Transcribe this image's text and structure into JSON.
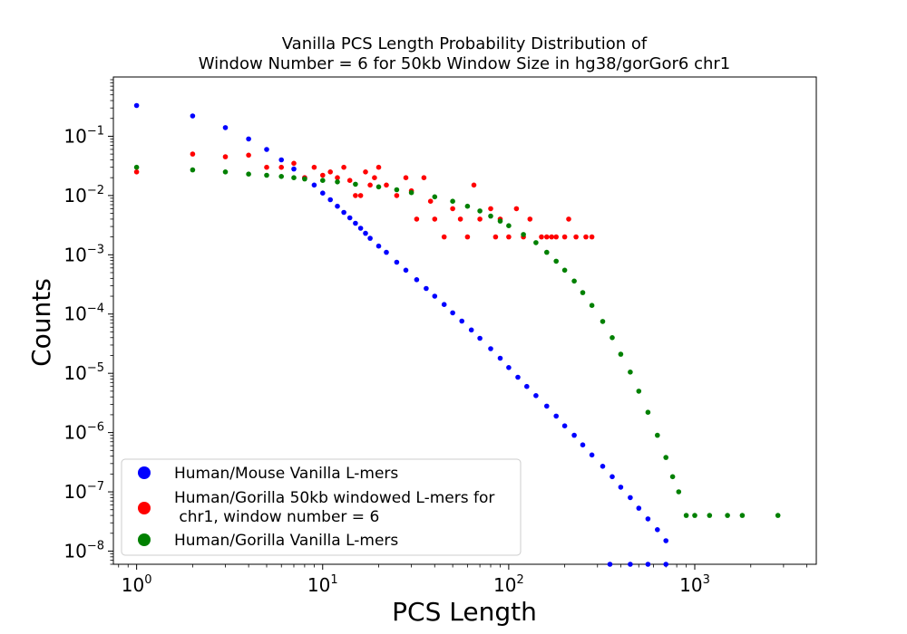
{
  "chart_data": {
    "type": "scatter",
    "title_lines": [
      "Vanilla PCS Length Probability Distribution of",
      "Window Number = 6 for 50kb Window Size in hg38/gorGor6 chr1"
    ],
    "xlabel": "PCS Length",
    "ylabel": "Counts",
    "xscale": "log",
    "yscale": "log",
    "xlim": [
      0.75,
      4500
    ],
    "ylim": [
      6e-09,
      1.0
    ],
    "x_ticks": [
      {
        "base": "10",
        "exp": "0",
        "value": 1
      },
      {
        "base": "10",
        "exp": "1",
        "value": 10
      },
      {
        "base": "10",
        "exp": "2",
        "value": 100
      },
      {
        "base": "10",
        "exp": "3",
        "value": 1000
      }
    ],
    "y_ticks": [
      {
        "base": "10",
        "exp": "−8",
        "value": 1e-08
      },
      {
        "base": "10",
        "exp": "−7",
        "value": 1e-07
      },
      {
        "base": "10",
        "exp": "−6",
        "value": 1e-06
      },
      {
        "base": "10",
        "exp": "−5",
        "value": 1e-05
      },
      {
        "base": "10",
        "exp": "−4",
        "value": 0.0001
      },
      {
        "base": "10",
        "exp": "−3",
        "value": 0.001
      },
      {
        "base": "10",
        "exp": "−2",
        "value": 0.01
      },
      {
        "base": "10",
        "exp": "−1",
        "value": 0.1
      }
    ],
    "grid": false,
    "legend_position": "bottom-left",
    "series": [
      {
        "name": "Human/Mouse Vanilla L-mers",
        "color": "#0000ff",
        "points": [
          [
            1,
            0.33
          ],
          [
            2,
            0.22
          ],
          [
            3,
            0.14
          ],
          [
            4,
            0.09
          ],
          [
            5,
            0.06
          ],
          [
            6,
            0.04
          ],
          [
            7,
            0.028
          ],
          [
            8,
            0.02
          ],
          [
            9,
            0.015
          ],
          [
            10,
            0.011
          ],
          [
            11,
            0.0085
          ],
          [
            12,
            0.0066
          ],
          [
            13,
            0.0052
          ],
          [
            14,
            0.0042
          ],
          [
            15,
            0.0034
          ],
          [
            16,
            0.0028
          ],
          [
            17,
            0.0023
          ],
          [
            18,
            0.0019
          ],
          [
            20,
            0.0014
          ],
          [
            22,
            0.0011
          ],
          [
            25,
            0.00075
          ],
          [
            28,
            0.00055
          ],
          [
            32,
            0.00038
          ],
          [
            36,
            0.00027
          ],
          [
            40,
            0.0002
          ],
          [
            45,
            0.000145
          ],
          [
            50,
            0.000105
          ],
          [
            56,
            7.6e-05
          ],
          [
            63,
            5.4e-05
          ],
          [
            70,
            3.9e-05
          ],
          [
            80,
            2.6e-05
          ],
          [
            90,
            1.8e-05
          ],
          [
            100,
            1.25e-05
          ],
          [
            112,
            8.6e-06
          ],
          [
            125,
            6e-06
          ],
          [
            140,
            4.2e-06
          ],
          [
            160,
            2.8e-06
          ],
          [
            180,
            1.9e-06
          ],
          [
            200,
            1.3e-06
          ],
          [
            225,
            9e-07
          ],
          [
            250,
            6.2e-07
          ],
          [
            280,
            4.2e-07
          ],
          [
            320,
            2.7e-07
          ],
          [
            360,
            1.8e-07
          ],
          [
            400,
            1.2e-07
          ],
          [
            450,
            8e-08
          ],
          [
            500,
            5.3e-08
          ],
          [
            560,
            3.5e-08
          ],
          [
            630,
            2.3e-08
          ],
          [
            700,
            1.5e-08
          ],
          [
            350,
            6e-09
          ],
          [
            450,
            6e-09
          ],
          [
            560,
            6e-09
          ],
          [
            700,
            6e-09
          ]
        ]
      },
      {
        "name": "Human/Gorilla 50kb windowed L-mers for chr1, window number = 6",
        "legend_lines": [
          "Human/Gorilla 50kb windowed L-mers for",
          " chr1, window number = 6"
        ],
        "color": "#ff0000",
        "points": [
          [
            1,
            0.025
          ],
          [
            2,
            0.05
          ],
          [
            3,
            0.045
          ],
          [
            4,
            0.048
          ],
          [
            5,
            0.03
          ],
          [
            6,
            0.03
          ],
          [
            7,
            0.035
          ],
          [
            8,
            0.02
          ],
          [
            9,
            0.03
          ],
          [
            10,
            0.022
          ],
          [
            11,
            0.025
          ],
          [
            12,
            0.02
          ],
          [
            13,
            0.03
          ],
          [
            14,
            0.018
          ],
          [
            15,
            0.01
          ],
          [
            16,
            0.01
          ],
          [
            17,
            0.025
          ],
          [
            18,
            0.015
          ],
          [
            19,
            0.02
          ],
          [
            20,
            0.03
          ],
          [
            22,
            0.015
          ],
          [
            25,
            0.01
          ],
          [
            28,
            0.02
          ],
          [
            30,
            0.012
          ],
          [
            32,
            0.004
          ],
          [
            35,
            0.02
          ],
          [
            38,
            0.008
          ],
          [
            40,
            0.004
          ],
          [
            45,
            0.002
          ],
          [
            50,
            0.006
          ],
          [
            55,
            0.004
          ],
          [
            60,
            0.002
          ],
          [
            65,
            0.015
          ],
          [
            70,
            0.004
          ],
          [
            80,
            0.006
          ],
          [
            85,
            0.002
          ],
          [
            90,
            0.004
          ],
          [
            100,
            0.002
          ],
          [
            110,
            0.006
          ],
          [
            120,
            0.002
          ],
          [
            130,
            0.004
          ],
          [
            150,
            0.002
          ],
          [
            160,
            0.002
          ],
          [
            170,
            0.002
          ],
          [
            180,
            0.002
          ],
          [
            200,
            0.002
          ],
          [
            210,
            0.004
          ],
          [
            230,
            0.002
          ],
          [
            260,
            0.002
          ],
          [
            280,
            0.002
          ]
        ]
      },
      {
        "name": "Human/Gorilla Vanilla L-mers",
        "color": "#008000",
        "points": [
          [
            1,
            0.03
          ],
          [
            2,
            0.027
          ],
          [
            3,
            0.025
          ],
          [
            4,
            0.023
          ],
          [
            5,
            0.022
          ],
          [
            6,
            0.021
          ],
          [
            7,
            0.02
          ],
          [
            8,
            0.019
          ],
          [
            10,
            0.018
          ],
          [
            12,
            0.017
          ],
          [
            15,
            0.0155
          ],
          [
            20,
            0.014
          ],
          [
            25,
            0.0125
          ],
          [
            30,
            0.0112
          ],
          [
            40,
            0.0095
          ],
          [
            50,
            0.008
          ],
          [
            60,
            0.0066
          ],
          [
            70,
            0.0055
          ],
          [
            80,
            0.0045
          ],
          [
            90,
            0.0037
          ],
          [
            100,
            0.0031
          ],
          [
            120,
            0.0022
          ],
          [
            140,
            0.0016
          ],
          [
            160,
            0.0011
          ],
          [
            180,
            0.00078
          ],
          [
            200,
            0.00055
          ],
          [
            225,
            0.00036
          ],
          [
            250,
            0.00023
          ],
          [
            280,
            0.00014
          ],
          [
            320,
            7.5e-05
          ],
          [
            360,
            4e-05
          ],
          [
            400,
            2.1e-05
          ],
          [
            450,
            1.05e-05
          ],
          [
            500,
            5e-06
          ],
          [
            560,
            2.2e-06
          ],
          [
            630,
            9e-07
          ],
          [
            700,
            3.8e-07
          ],
          [
            760,
            1.8e-07
          ],
          [
            820,
            1e-07
          ],
          [
            900,
            4e-08
          ],
          [
            1000,
            4e-08
          ],
          [
            1200,
            4e-08
          ],
          [
            1500,
            4e-08
          ],
          [
            1800,
            4e-08
          ],
          [
            2800,
            4e-08
          ]
        ]
      }
    ]
  }
}
